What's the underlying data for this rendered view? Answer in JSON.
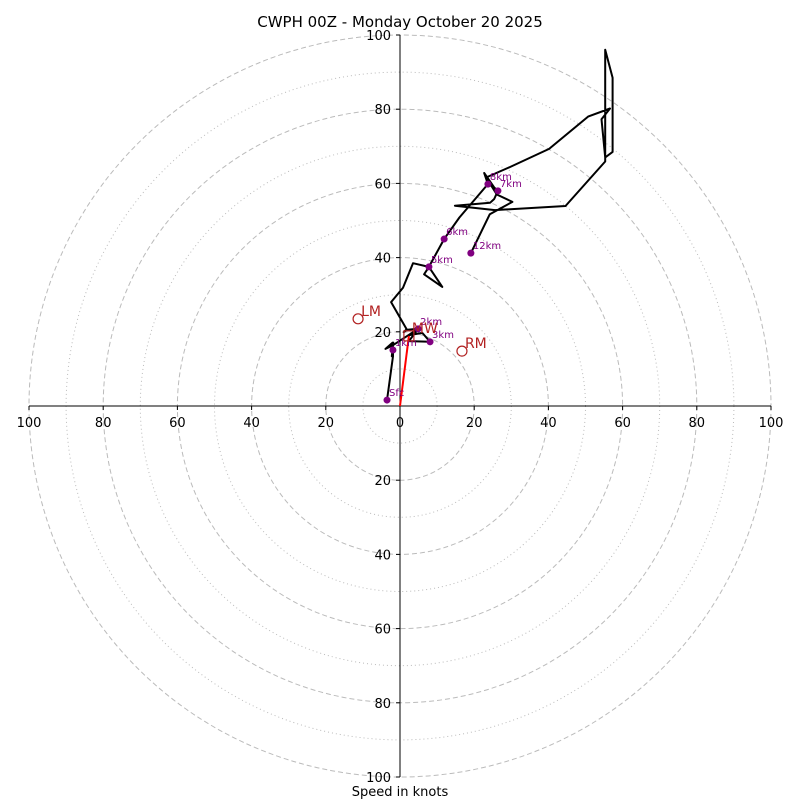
{
  "chart_data": {
    "type": "line",
    "subtype": "hodograph",
    "title": "CWPH 00Z - Monday October 20 2025",
    "xlabel": "Speed in knots",
    "ylabel": "",
    "xlim": [
      -100,
      100
    ],
    "ylim": [
      -100,
      100
    ],
    "grid": true,
    "rings_dashed": [
      20,
      40,
      60,
      80,
      100
    ],
    "rings_dotted": [
      10,
      30,
      50,
      70,
      90
    ],
    "x_tick_labels": [
      "100",
      "80",
      "60",
      "40",
      "20",
      "0",
      "20",
      "40",
      "60",
      "80",
      "100"
    ],
    "x_tick_values": [
      -100,
      -80,
      -60,
      -40,
      -20,
      0,
      20,
      40,
      60,
      80,
      100
    ],
    "y_tick_labels": [
      "100",
      "80",
      "60",
      "40",
      "20",
      "20",
      "40",
      "60",
      "80",
      "100"
    ],
    "y_tick_values": [
      100,
      80,
      60,
      40,
      20,
      -20,
      -40,
      -60,
      -80,
      -100
    ],
    "colors": {
      "hodograph": "#000000",
      "height_markers": "#800080",
      "storm_motion": "#b22222",
      "shear_vector": "#ff0000",
      "grid": "#bbbbbb"
    },
    "hodograph_trace": {
      "name": "wind profile",
      "u": [
        -3.5,
        -1.9,
        -1.9,
        -2.2,
        -1.8,
        -2.0,
        -3.9,
        -1.9,
        4.9,
        2.4,
        8.1,
        6.0,
        2.5,
        4.9,
        1.6,
        1.0,
        1.9,
        -2.4,
        0.8,
        3.5,
        7.8,
        6.5,
        11.4,
        7.8,
        11.9,
        16.0,
        23.7,
        22.7,
        25.4,
        26.4,
        25.4,
        24.3,
        14.8,
        25.6,
        44.6,
        55.3,
        55.3,
        57.3,
        57.3,
        55.3,
        54.3,
        56.6,
        50.7,
        40.2,
        29.6,
        23.2,
        26.1,
        30.3,
        24.2,
        19.1
      ],
      "v": [
        1.6,
        13.4,
        15.1,
        13.4,
        17.1,
        17.1,
        15.4,
        16.4,
        20.8,
        17.5,
        17.3,
        19.7,
        19.1,
        20.8,
        20.5,
        19.9,
        20.5,
        28.0,
        31.9,
        38.5,
        37.5,
        35.5,
        32.1,
        37.5,
        45.0,
        50.8,
        59.8,
        62.8,
        58.9,
        58.0,
        55.8,
        54.8,
        54.0,
        52.8,
        53.9,
        65.9,
        96.0,
        88.5,
        68.5,
        67.0,
        77.3,
        80.2,
        78.0,
        69.3,
        64.4,
        61.6,
        57.0,
        55.0,
        51.7,
        41.2
      ]
    },
    "height_markers": [
      {
        "label": "Sfc",
        "u": -3.5,
        "v": 1.6
      },
      {
        "label": "1km",
        "u": -1.9,
        "v": 15.1
      },
      {
        "label": "2km",
        "u": 4.9,
        "v": 20.8
      },
      {
        "label": "3km",
        "u": 8.1,
        "v": 17.3
      },
      {
        "label": "5km",
        "u": 7.8,
        "v": 37.5
      },
      {
        "label": "6km",
        "u": 11.9,
        "v": 45.0
      },
      {
        "label": "7km",
        "u": 26.4,
        "v": 58.0
      },
      {
        "label": "8km",
        "u": 23.7,
        "v": 59.8
      },
      {
        "label": "12km",
        "u": 19.1,
        "v": 41.2
      }
    ],
    "storm_motions": [
      {
        "label": "LM",
        "u": -11.3,
        "v": 23.5,
        "marker": "circle"
      },
      {
        "label": "RM",
        "u": 16.7,
        "v": 14.8,
        "marker": "circle"
      },
      {
        "label": "MW",
        "u": 2.4,
        "v": 18.9,
        "marker": "square"
      }
    ],
    "shear_vector": {
      "from": {
        "u": 0,
        "v": 0
      },
      "to": {
        "u": 2.4,
        "v": 18.9
      }
    }
  }
}
